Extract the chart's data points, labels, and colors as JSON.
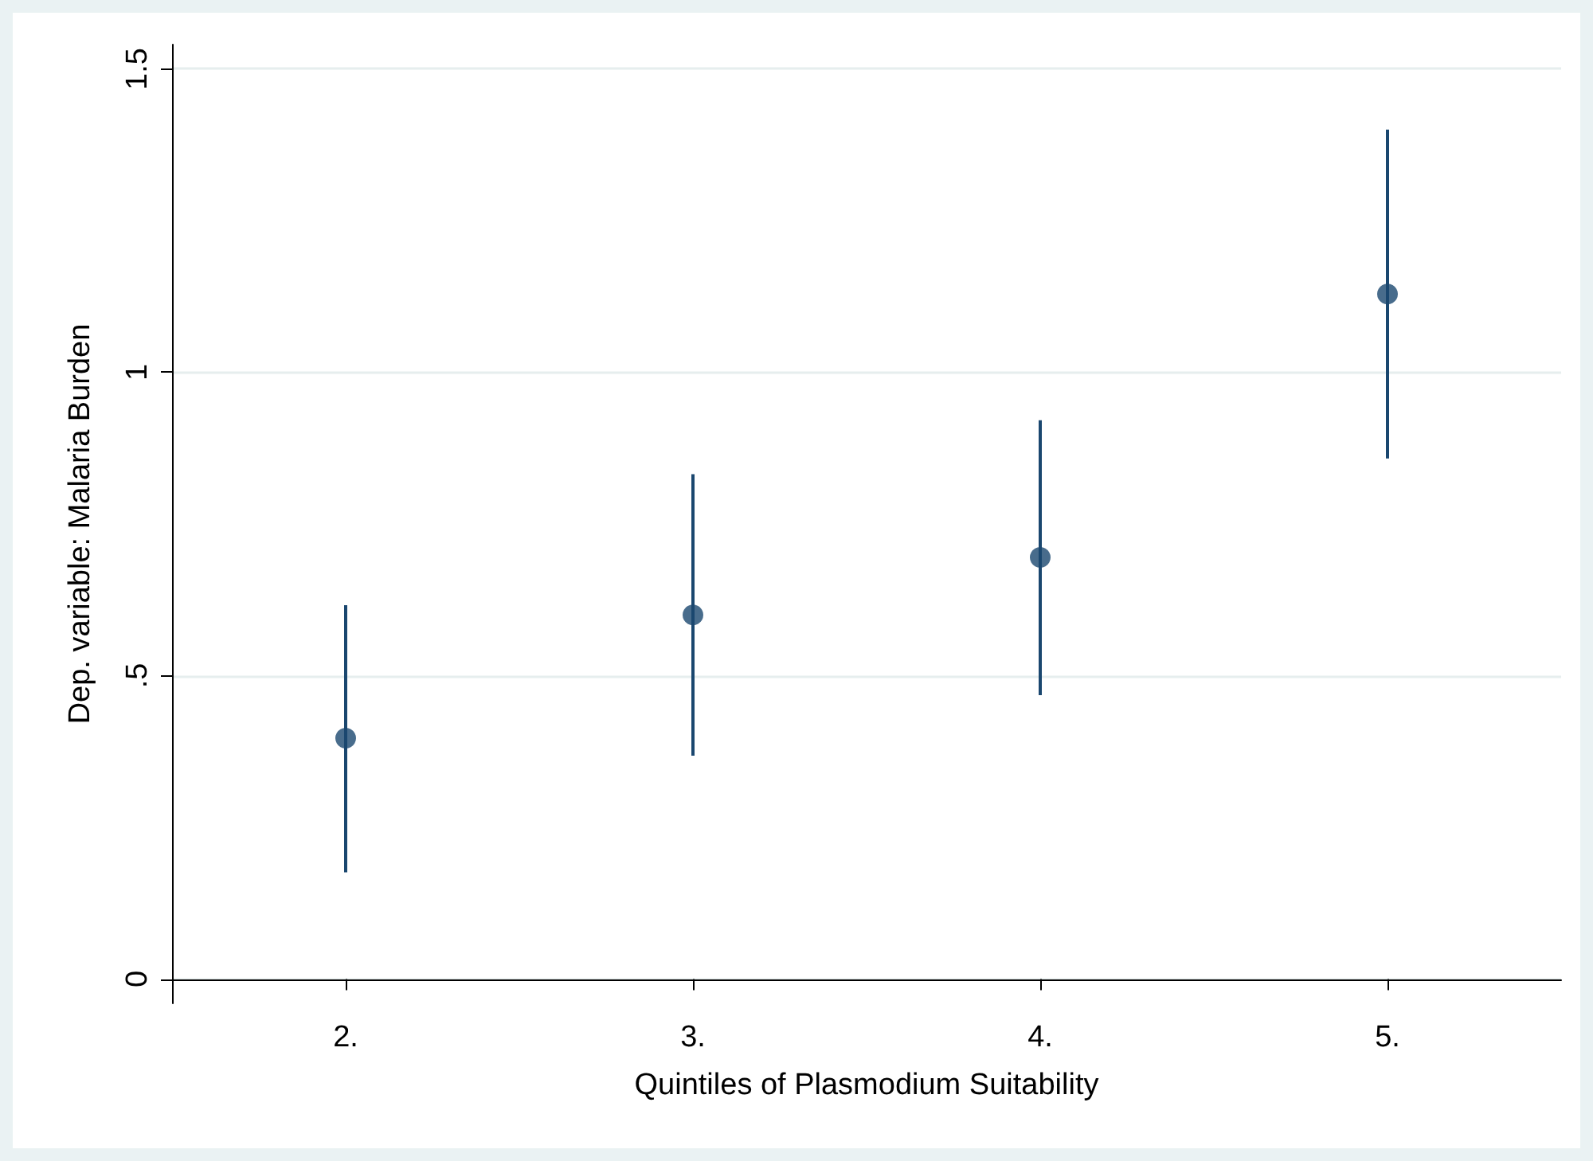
{
  "chart_data": {
    "type": "scatter",
    "xlabel": "Quintiles of Plasmodium Suitability",
    "ylabel": "Dep. variable: Malaria Burden",
    "categories": [
      "2.",
      "3.",
      "4.",
      "5."
    ],
    "series": [
      {
        "color": "#1a476f",
        "values": [
          0.397,
          0.6,
          0.695,
          1.129
        ],
        "errors": [
          [
            0.176,
            0.616
          ],
          [
            0.368,
            0.832
          ],
          [
            0.468,
            0.921
          ],
          [
            0.858,
            1.4
          ]
        ]
      }
    ],
    "ylim": [
      -0.04,
      1.54
    ],
    "yticks": [
      0,
      {
        "value": 0.5,
        "label": ".5"
      },
      1,
      1.5
    ],
    "grid": "y",
    "marker": "circle"
  }
}
